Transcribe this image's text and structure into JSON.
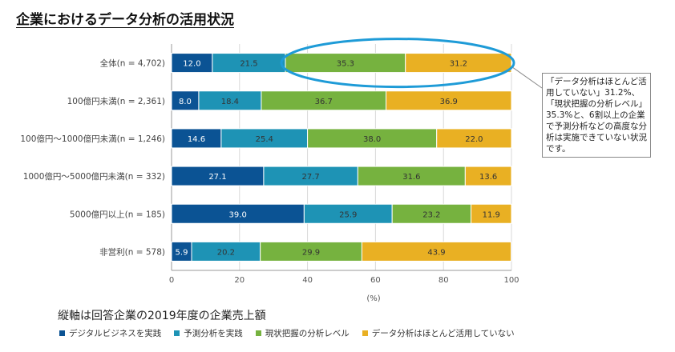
{
  "title": "企業におけるデータ分析の活用状況",
  "chart_data": {
    "type": "bar",
    "orientation": "horizontal",
    "stacked": true,
    "categories": [
      "全体(n = 4,702)",
      "100億円未満(n = 2,361)",
      "100億円～1000億円未満(n = 1,246)",
      "1000億円～5000億円未満(n = 332)",
      "5000億円以上(n = 185)",
      "非営利(n = 578)"
    ],
    "series": [
      {
        "name": "デジタルビジネスを実践",
        "color": "#0b5394",
        "label_color": "#ffffff",
        "values": [
          12.0,
          8.0,
          14.6,
          27.1,
          39.0,
          5.9
        ]
      },
      {
        "name": "予測分析を実践",
        "color": "#1e93b5",
        "label_color": "#333333",
        "values": [
          21.5,
          18.4,
          25.4,
          27.7,
          25.9,
          20.2
        ]
      },
      {
        "name": "現状把握の分析レベル",
        "color": "#76b23f",
        "label_color": "#333333",
        "values": [
          35.3,
          36.7,
          38.0,
          31.6,
          23.2,
          29.9
        ]
      },
      {
        "name": "データ分析はほとんど活用していない",
        "color": "#e9b023",
        "label_color": "#333333",
        "values": [
          31.2,
          36.9,
          22.0,
          13.6,
          11.9,
          43.9
        ]
      }
    ],
    "xlim": [
      0,
      100
    ],
    "xticks": [
      0,
      20,
      40,
      60,
      80,
      100
    ],
    "xlabel": "(%)",
    "ylabel": "",
    "grid": true
  },
  "callout": {
    "text": "「データ分析はほとんど活用していない」31.2%、「現状把握の分析レベル」35.3%と、6割以上の企業で予測分析などの高度な分析は実施できていない状況です。"
  },
  "note": "縦軸は回答企業の2019年度の企業売上額"
}
